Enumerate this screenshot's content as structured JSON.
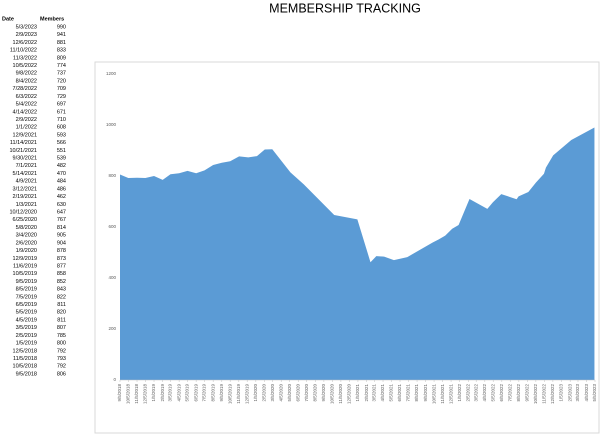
{
  "table": {
    "columns": [
      "Date",
      "Members"
    ]
  },
  "chart_data": {
    "type": "area",
    "title": "MEMBERSHIP TRACKING",
    "color": "#5b9bd5",
    "x": [
      "5/3/2023",
      "2/9/2023",
      "12/6/2022",
      "11/10/2022",
      "11/3/2022",
      "10/5/2022",
      "9/8/2022",
      "8/4/2022",
      "7/28/2022",
      "6/3/2022",
      "5/4/2022",
      "4/14/2022",
      "2/9/2022",
      "1/1/2022",
      "12/9/2021",
      "11/14/2021",
      "10/21/2021",
      "9/30/2021",
      "7/1/2021",
      "5/14/2021",
      "4/9/2021",
      "3/12/2021",
      "2/19/2021",
      "1/3/2021",
      "10/12/2020",
      "6/25/2020",
      "5/8/2020",
      "3/4/2020",
      "2/6/2020",
      "1/9/2020",
      "12/9/2019",
      "11/6/2019",
      "10/5/2019",
      "9/5/2019",
      "8/5/2019",
      "7/5/2019",
      "6/5/2019",
      "5/5/2019",
      "4/5/2019",
      "3/5/2019",
      "2/5/2019",
      "1/5/2019",
      "12/5/2018",
      "11/5/2018",
      "10/5/2018",
      "9/5/2018"
    ],
    "values": [
      990,
      941,
      881,
      833,
      809,
      774,
      737,
      720,
      709,
      729,
      697,
      671,
      710,
      608,
      593,
      566,
      551,
      539,
      482,
      470,
      484,
      486,
      462,
      630,
      647,
      767,
      814,
      905,
      904,
      878,
      873,
      877,
      858,
      852,
      843,
      822,
      811,
      820,
      811,
      807,
      785,
      800,
      792,
      793,
      792,
      806
    ],
    "xlim": [
      "9/5/2018",
      "5/5/2023"
    ],
    "xticks": [
      "9/5/2018",
      "10/5/2018",
      "11/5/2018",
      "12/5/2018",
      "1/5/2019",
      "2/5/2019",
      "3/5/2019",
      "4/5/2019",
      "5/5/2019",
      "6/5/2019",
      "7/5/2019",
      "8/5/2019",
      "9/5/2019",
      "10/5/2019",
      "11/5/2019",
      "12/5/2019",
      "1/5/2020",
      "2/5/2020",
      "3/5/2020",
      "4/5/2020",
      "5/5/2020",
      "6/5/2020",
      "7/5/2020",
      "8/5/2020",
      "9/5/2020",
      "10/5/2020",
      "11/5/2020",
      "12/5/2020",
      "1/5/2021",
      "2/5/2021",
      "3/5/2021",
      "4/5/2021",
      "5/5/2021",
      "6/5/2021",
      "7/5/2021",
      "8/5/2021",
      "9/5/2021",
      "10/5/2021",
      "11/5/2021",
      "12/5/2021",
      "1/5/2022",
      "2/5/2022",
      "3/5/2022",
      "4/5/2022",
      "5/5/2022",
      "6/5/2022",
      "7/5/2022",
      "8/5/2022",
      "9/5/2022",
      "10/5/2022",
      "11/5/2022",
      "12/5/2022",
      "1/5/2023",
      "2/5/2023",
      "3/5/2023",
      "4/5/2023",
      "5/5/2023"
    ],
    "ylim": [
      0,
      1200
    ],
    "yticks": [
      0,
      200,
      400,
      600,
      800,
      1000,
      1200
    ],
    "grid": false
  }
}
